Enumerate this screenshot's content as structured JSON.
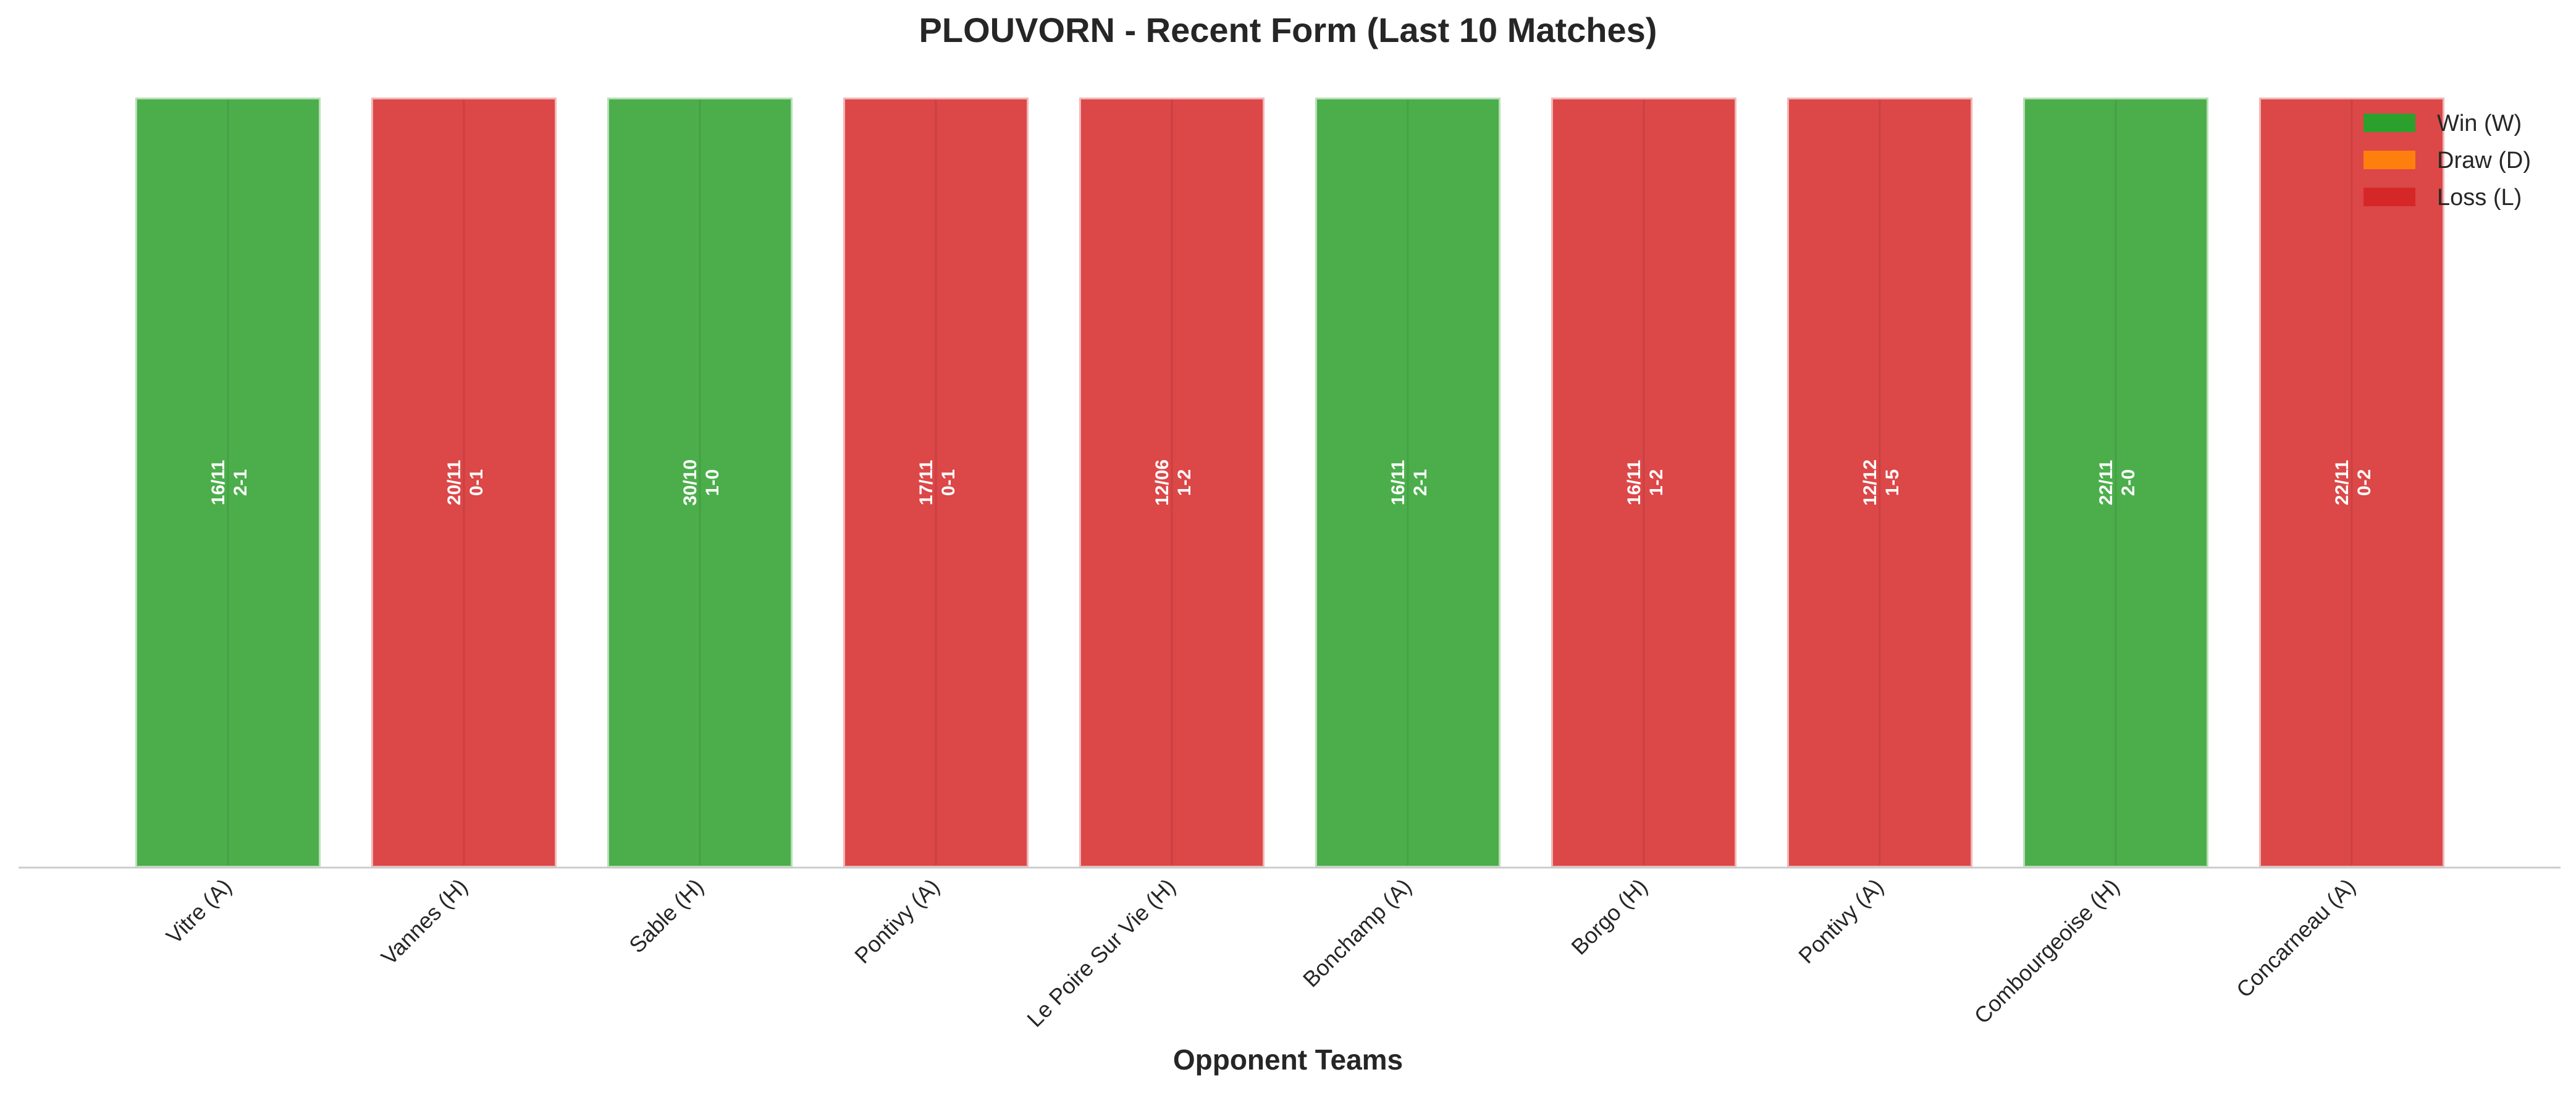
{
  "chart_data": {
    "type": "bar",
    "title": "PLOUVORN - Recent Form (Last 10 Matches)",
    "xlabel": "Opponent Teams",
    "ylabel": "",
    "ylim": [
      0,
      1
    ],
    "grid": false,
    "legend_position": "top-right",
    "categories": [
      "Vitre (A)",
      "Vannes (H)",
      "Sable (H)",
      "Pontivy (A)",
      "Le Poire Sur Vie (H)",
      "Bonchamp (A)",
      "Borgo (H)",
      "Pontivy (A)",
      "Combourgeoise (H)",
      "Concarneau (A)"
    ],
    "values": [
      1,
      1,
      1,
      1,
      1,
      1,
      1,
      1,
      1,
      1
    ],
    "results": [
      "W",
      "L",
      "W",
      "L",
      "L",
      "W",
      "L",
      "L",
      "W",
      "L"
    ],
    "dates": [
      "16/11",
      "20/11",
      "30/10",
      "17/11",
      "12/06",
      "16/11",
      "16/11",
      "12/12",
      "22/11",
      "22/11"
    ],
    "scores": [
      "2-1",
      "0-1",
      "1-0",
      "0-1",
      "1-2",
      "2-1",
      "1-2",
      "1-5",
      "2-0",
      "0-2"
    ],
    "legend": [
      {
        "key": "W",
        "label": "Win (W)",
        "color": "#2ca02c"
      },
      {
        "key": "D",
        "label": "Draw (D)",
        "color": "#ff7f0e"
      },
      {
        "key": "L",
        "label": "Loss (L)",
        "color": "#d62728"
      }
    ]
  }
}
